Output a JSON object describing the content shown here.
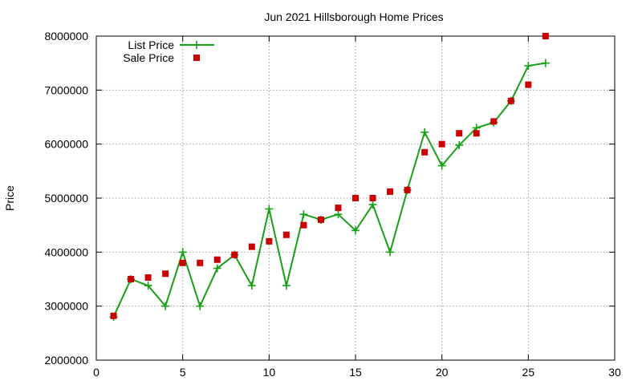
{
  "chart_data": {
    "type": "line",
    "title": "Jun 2021 Hillsborough Home Prices",
    "xlabel": "",
    "ylabel": "Price",
    "xlim": [
      0,
      30
    ],
    "ylim": [
      2000000,
      8000000
    ],
    "x_ticks": [
      0,
      5,
      10,
      15,
      20,
      25,
      30
    ],
    "y_ticks": [
      2000000,
      3000000,
      4000000,
      5000000,
      6000000,
      7000000,
      8000000
    ],
    "x_tick_labels": [
      "0",
      "5",
      "10",
      "15",
      "20",
      "25",
      "30"
    ],
    "y_tick_labels": [
      "2000000",
      "3000000",
      "4000000",
      "5000000",
      "6000000",
      "7000000",
      "8000000"
    ],
    "grid": true,
    "legend_position": "top-left",
    "series": [
      {
        "name": "List Price",
        "style": "line-plus",
        "color": "#16a016",
        "x": [
          1,
          2,
          3,
          4,
          5,
          6,
          7,
          8,
          9,
          10,
          11,
          12,
          13,
          14,
          15,
          16,
          17,
          18,
          19,
          20,
          21,
          22,
          23,
          24,
          25,
          26
        ],
        "values": [
          2800000,
          3500000,
          3380000,
          3000000,
          4000000,
          3000000,
          3700000,
          3950000,
          3380000,
          4800000,
          3380000,
          4700000,
          4600000,
          4700000,
          4400000,
          4880000,
          4000000,
          5150000,
          6220000,
          5600000,
          5980000,
          6300000,
          6400000,
          6800000,
          7450000,
          7500000
        ]
      },
      {
        "name": "Sale Price",
        "style": "square",
        "color": "#cc0000",
        "x": [
          1,
          2,
          3,
          4,
          5,
          6,
          7,
          8,
          9,
          10,
          11,
          12,
          13,
          14,
          15,
          16,
          17,
          18,
          19,
          20,
          21,
          22,
          23,
          24,
          25,
          26
        ],
        "values": [
          2820000,
          3500000,
          3530000,
          3600000,
          3800000,
          3800000,
          3860000,
          3950000,
          4100000,
          4200000,
          4320000,
          4500000,
          4600000,
          4820000,
          5000000,
          5000000,
          5120000,
          5150000,
          5850000,
          6000000,
          6200000,
          6200000,
          6420000,
          6800000,
          7100000,
          8000000
        ]
      }
    ]
  }
}
